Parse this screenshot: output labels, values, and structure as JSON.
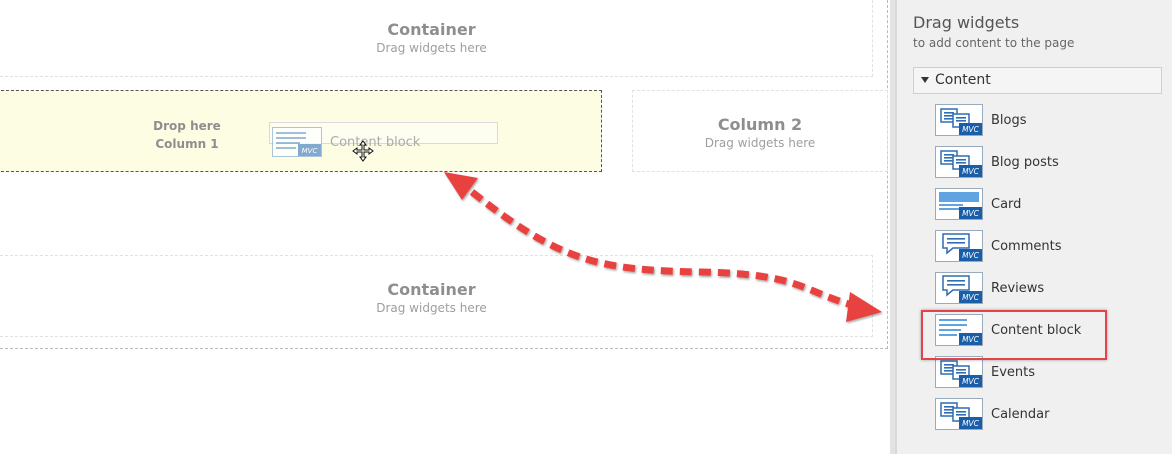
{
  "canvas": {
    "container_top": {
      "title": "Container",
      "subtitle": "Drag widgets here"
    },
    "drop_zone": {
      "line1": "Drop here",
      "line2": "Column 1"
    },
    "drag_ghost": {
      "label": "Content block",
      "icon": "content-block-icon",
      "badge": "MVC"
    },
    "column2": {
      "title": "Column 2",
      "subtitle": "Drag widgets here"
    },
    "container_bottom": {
      "title": "Container",
      "subtitle": "Drag widgets here"
    }
  },
  "panel": {
    "title": "Drag widgets",
    "subtitle": "to add content to the page",
    "section": "Content",
    "badge": "MVC",
    "widgets": [
      {
        "label": "Blogs",
        "icon": "blogs-icon"
      },
      {
        "label": "Blog posts",
        "icon": "blog-posts-icon"
      },
      {
        "label": "Card",
        "icon": "card-icon"
      },
      {
        "label": "Comments",
        "icon": "comments-icon"
      },
      {
        "label": "Reviews",
        "icon": "reviews-icon"
      },
      {
        "label": "Content block",
        "icon": "content-block-icon"
      },
      {
        "label": "Events",
        "icon": "events-icon"
      },
      {
        "label": "Calendar",
        "icon": "calendar-icon"
      }
    ]
  },
  "colors": {
    "highlight": "#e2434b",
    "arrow": "#e8433f",
    "drop_zone": "#fdfde3",
    "icon_blue": "#1a5ea8"
  }
}
